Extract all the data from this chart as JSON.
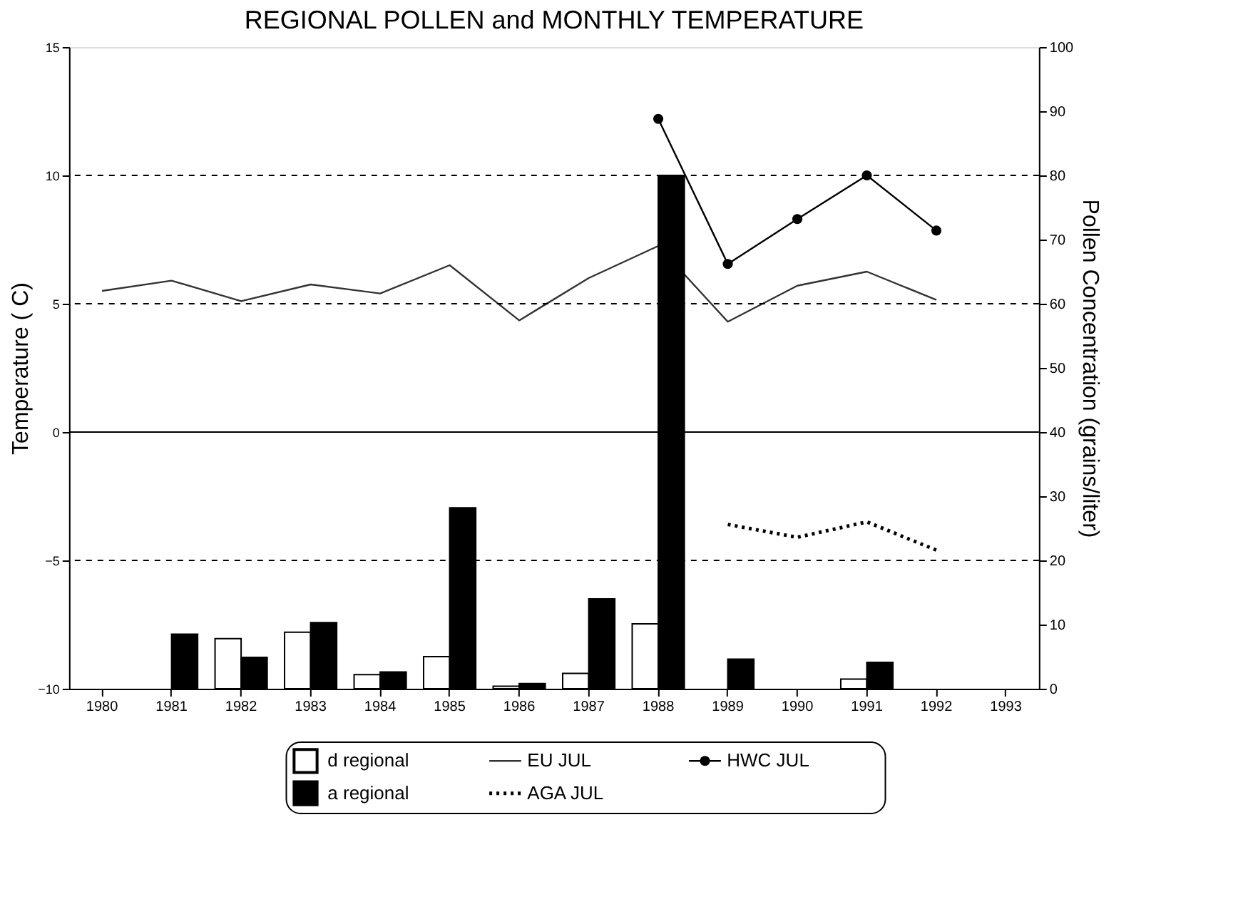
{
  "chart_data": {
    "type": "line",
    "title": "REGIONAL POLLEN and MONTHLY TEMPERATURE",
    "ylabel": "Temperature ( C)",
    "y2label": "Pollen Concentration (grains/liter)",
    "categories": [
      "1980",
      "1981",
      "1982",
      "1983",
      "1984",
      "1985",
      "1986",
      "1987",
      "1988",
      "1989",
      "1990",
      "1991",
      "1992",
      "1993"
    ],
    "ylim": [
      -10,
      15
    ],
    "yticks": [
      -10,
      -5,
      0,
      5,
      10,
      15
    ],
    "y2lim": [
      0,
      100
    ],
    "y2ticks": [
      0,
      10,
      20,
      30,
      40,
      50,
      60,
      70,
      80,
      90,
      100
    ],
    "series": [
      {
        "name": "d regional",
        "type": "bar",
        "axis": "y2",
        "color": "#ffffff",
        "values": [
          null,
          null,
          7.8,
          8.8,
          2.2,
          5.0,
          0.4,
          2.4,
          10.1,
          null,
          null,
          1.5,
          null,
          null
        ]
      },
      {
        "name": "a regional",
        "type": "bar",
        "axis": "y2",
        "color": "#000000",
        "values": [
          null,
          8.5,
          4.9,
          10.3,
          2.6,
          28.2,
          0.8,
          14,
          80,
          4.6,
          null,
          4.1,
          null,
          null
        ]
      },
      {
        "name": "EU JUL",
        "color": "#333333",
        "line_style": "solid",
        "marker": "none",
        "values": [
          5.5,
          5.9,
          5.1,
          5.75,
          5.4,
          6.5,
          4.35,
          6.0,
          7.25,
          4.3,
          5.7,
          6.25,
          5.15,
          null
        ]
      },
      {
        "name": "AGA JUL",
        "color": "#000000",
        "line_style": "dotted",
        "marker": "none",
        "values": [
          null,
          null,
          null,
          null,
          null,
          null,
          null,
          null,
          null,
          -3.6,
          -4.1,
          -3.5,
          -4.6,
          null
        ]
      },
      {
        "name": "HWC JUL",
        "color": "#000000",
        "line_style": "solid",
        "marker": "circle",
        "values": [
          null,
          null,
          null,
          null,
          null,
          null,
          null,
          null,
          12.2,
          6.55,
          8.3,
          10.0,
          7.85,
          null
        ]
      }
    ],
    "ref_lines": [
      {
        "axis": "y",
        "value": 10,
        "line_style": "dashed",
        "color": "#000000"
      },
      {
        "axis": "y",
        "value": 5,
        "line_style": "dashed",
        "color": "#000000"
      },
      {
        "axis": "y",
        "value": 0,
        "line_style": "solid",
        "color": "#000000"
      },
      {
        "axis": "y",
        "value": -5,
        "line_style": "dashed",
        "color": "#000000"
      }
    ],
    "grid": false,
    "legend": "bottom"
  }
}
